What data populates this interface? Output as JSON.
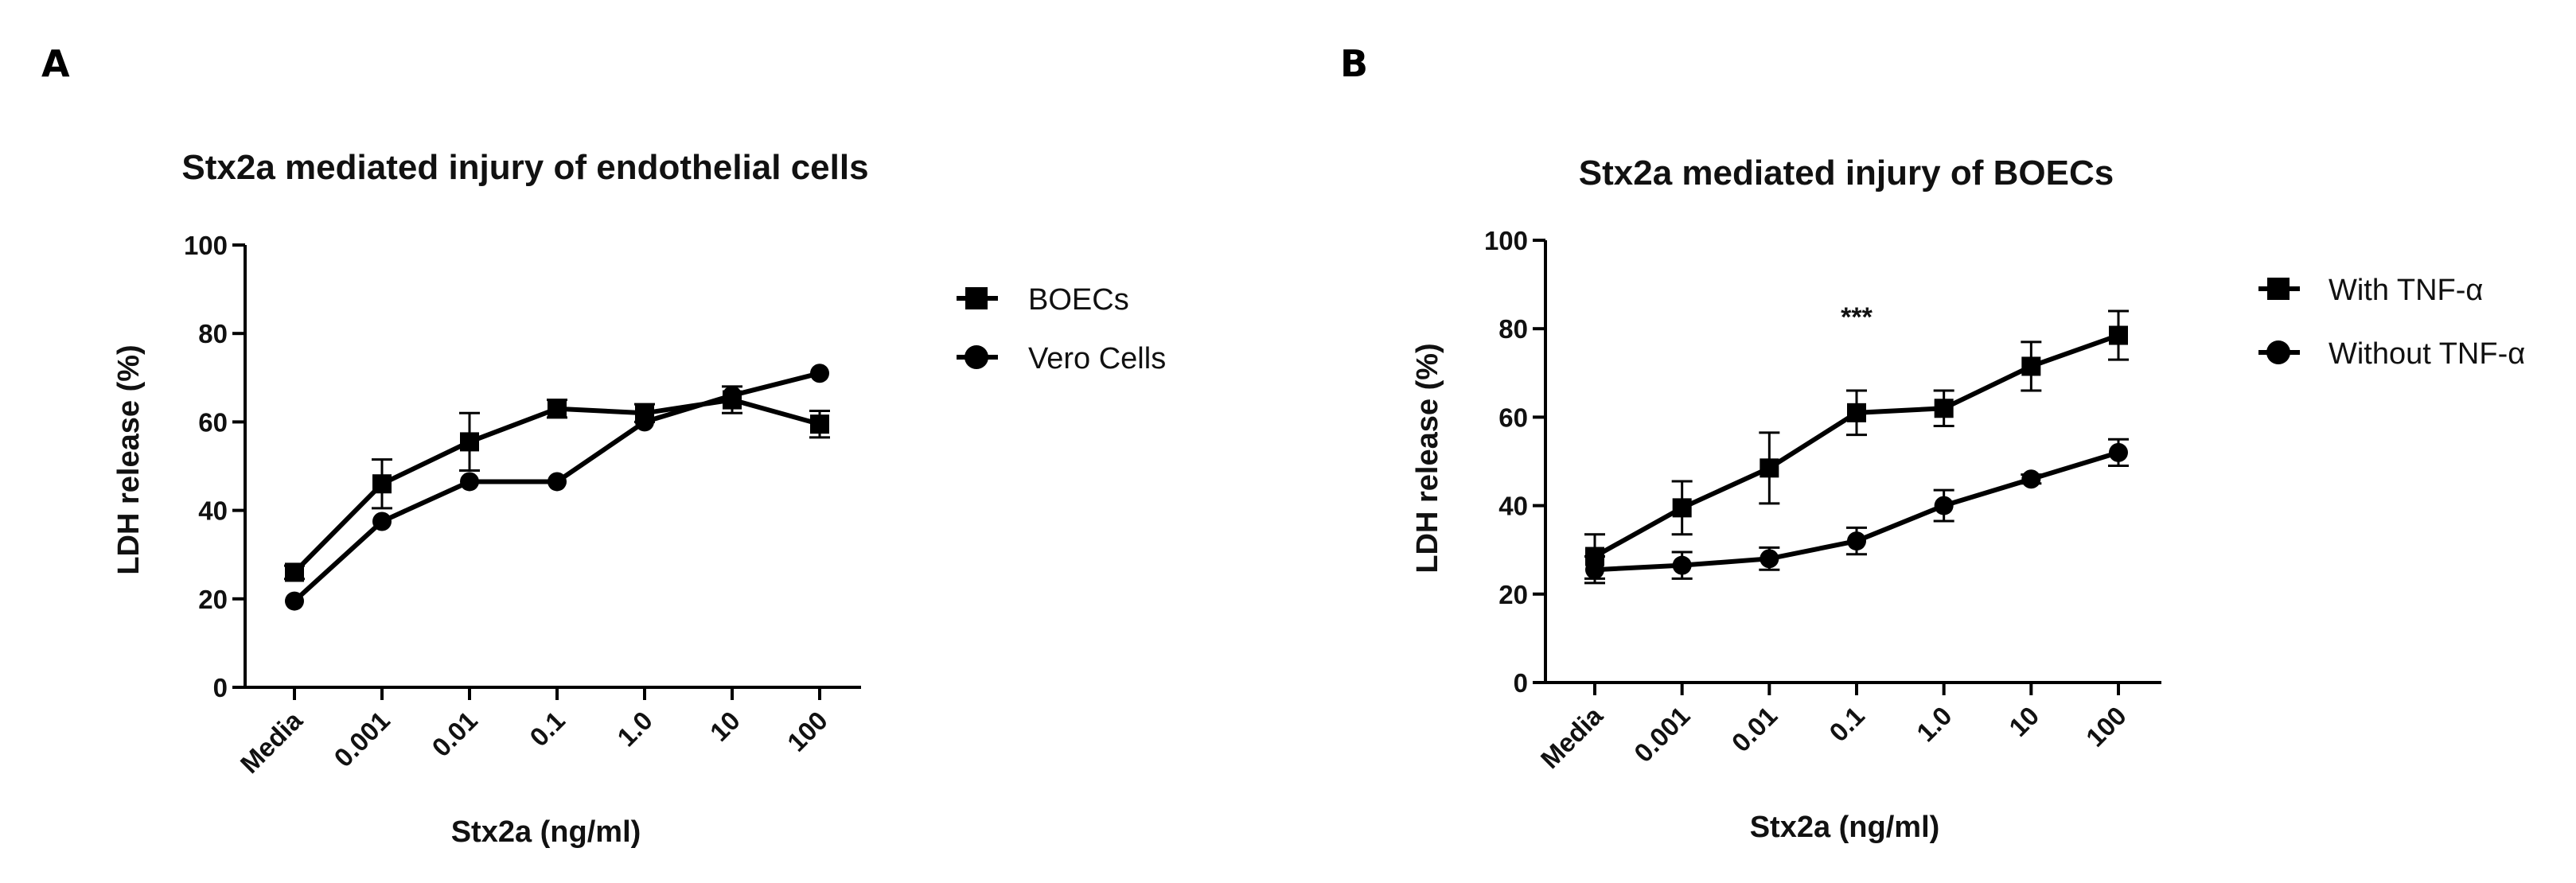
{
  "chart_data": [
    {
      "panel": "A",
      "type": "line",
      "title": "Stx2a mediated injury of endothelial cells",
      "xlabel": "Stx2a (ng/ml)",
      "ylabel": "LDH release (%)",
      "ylim": [
        0,
        100
      ],
      "yticks": [
        0,
        20,
        40,
        60,
        80,
        100
      ],
      "categories": [
        "Media",
        "0.001",
        "0.01",
        "0.1",
        "1.0",
        "10",
        "100"
      ],
      "legend_position": "right",
      "series": [
        {
          "name": "BOECs",
          "marker": "square",
          "values": [
            26,
            46,
            55.5,
            63,
            62,
            65,
            59.5
          ],
          "errors": [
            1.5,
            5.5,
            6.5,
            2,
            2,
            3,
            3
          ]
        },
        {
          "name": "Vero Cells",
          "marker": "circle",
          "values": [
            19.5,
            37.5,
            46.5,
            46.5,
            60,
            66,
            71
          ],
          "errors": [
            0,
            0,
            0,
            0,
            0,
            0,
            0
          ]
        }
      ],
      "annotations": []
    },
    {
      "panel": "B",
      "type": "line",
      "title": "Stx2a mediated injury of BOECs",
      "xlabel": "Stx2a (ng/ml)",
      "ylabel": "LDH release (%)",
      "ylim": [
        0,
        100
      ],
      "yticks": [
        0,
        20,
        40,
        60,
        80,
        100
      ],
      "categories": [
        "Media",
        "0.001",
        "0.01",
        "0.1",
        "1.0",
        "10",
        "100"
      ],
      "legend_position": "right",
      "series": [
        {
          "name": "With TNF-α",
          "marker": "square",
          "values": [
            28.5,
            39.5,
            48.5,
            61,
            62,
            71.5,
            78.5
          ],
          "errors": [
            5,
            6,
            8,
            5,
            4,
            5.5,
            5.5
          ]
        },
        {
          "name": "Without TNF-α",
          "marker": "circle",
          "values": [
            25.5,
            26.5,
            28,
            32,
            40,
            46,
            52
          ],
          "errors": [
            3,
            3,
            2.5,
            3,
            3.5,
            1,
            3
          ]
        }
      ],
      "annotations": [
        {
          "text": "***",
          "category": "0.1"
        }
      ]
    }
  ]
}
